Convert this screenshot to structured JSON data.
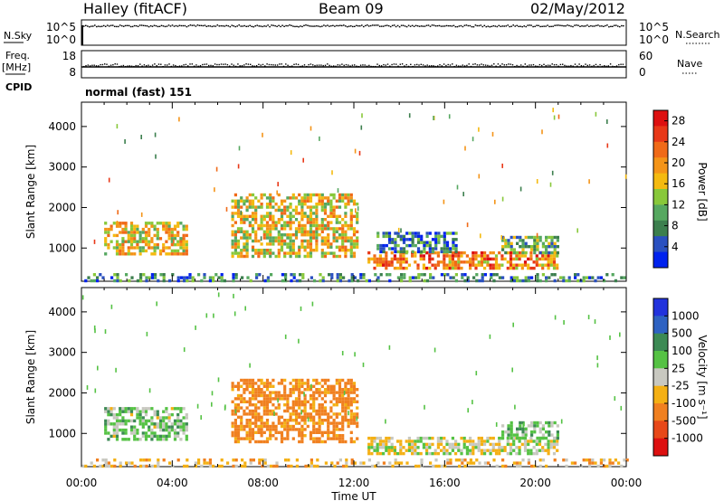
{
  "header": {
    "station": "Halley (fitACF)",
    "beam": "Beam 09",
    "date": "02/May/2012"
  },
  "left_labels": {
    "nsky": "N.Sky",
    "freq": "Freq.",
    "freq_unit": "[MHz]",
    "cpid": "CPID"
  },
  "right_labels": {
    "nsearch": "N.Search",
    "nave": "Nave"
  },
  "cpid_text": "normal (fast) 151",
  "colors": {
    "noise_trace": "#000000",
    "frame": "#000000"
  },
  "chart_data": [
    {
      "type": "line",
      "panel": "noise",
      "left_ticks": [
        "10^5",
        "10^0"
      ],
      "right_ticks": [
        "10^5",
        "10^0"
      ],
      "series": [
        {
          "name": "N.Sky",
          "description_level": "near 10^5, flat all day"
        },
        {
          "name": "N.Search",
          "description_level": "near 10^5, flat all day"
        }
      ]
    },
    {
      "type": "scatter",
      "panel": "frequency",
      "left_ticks": [
        "18",
        "8"
      ],
      "right_ticks": [
        "60",
        "0"
      ],
      "ylim_left": [
        8,
        18
      ],
      "ylim_right": [
        0,
        60
      ],
      "series": [
        {
          "name": "Freq.",
          "level": 12.0
        },
        {
          "name": "Nave",
          "level": 29
        }
      ]
    },
    {
      "type": "heatmap",
      "panel": "power",
      "ylabel": "Slant Range [km]",
      "xlabel": "",
      "yticks": [
        1000,
        2000,
        3000,
        4000
      ],
      "ylim": [
        180,
        4600
      ],
      "xlim_hours": [
        0,
        24
      ],
      "colorbar": {
        "label": "Power [dB]",
        "ticks": [
          "4",
          "8",
          "12",
          "16",
          "20",
          "24",
          "28"
        ],
        "range": [
          0,
          30
        ],
        "colors": [
          "#0022ee",
          "#2a50c0",
          "#3c7f4e",
          "#56a860",
          "#88c83a",
          "#f4ba10",
          "#f49418",
          "#f06a18",
          "#e83818",
          "#dd1010"
        ]
      },
      "regions": [
        {
          "t0": 1.0,
          "t1": 4.6,
          "r0": 880,
          "r1": 1650,
          "value": 17
        },
        {
          "t0": 6.6,
          "t1": 12.1,
          "r0": 820,
          "r1": 2350,
          "value": 16
        },
        {
          "t0": 12.6,
          "t1": 20.9,
          "r0": 530,
          "r1": 920,
          "value": 21
        },
        {
          "t0": 13.0,
          "t1": 16.5,
          "r0": 920,
          "r1": 1400,
          "value": 6
        },
        {
          "t0": 18.5,
          "t1": 21.0,
          "r0": 900,
          "r1": 1300,
          "value": 10
        },
        {
          "t0": 0.0,
          "t1": 24.0,
          "r0": 180,
          "r1": 380,
          "value": 8
        }
      ]
    },
    {
      "type": "heatmap",
      "panel": "velocity",
      "ylabel": "Slant Range [km]",
      "xlabel": "Time UT",
      "xticks": [
        "00:00",
        "04:00",
        "08:00",
        "12:00",
        "16:00",
        "20:00",
        "00:00"
      ],
      "yticks": [
        1000,
        2000,
        3000,
        4000
      ],
      "ylim": [
        180,
        4600
      ],
      "xlim_hours": [
        0,
        24
      ],
      "colorbar": {
        "label": "Velocity [m s⁻¹]",
        "ticks": [
          "1000",
          "500",
          "100",
          "25",
          "-25",
          "-100",
          "-500",
          "-1000"
        ],
        "colors": [
          "#2233dd",
          "#2e62c2",
          "#3c8a54",
          "#55c244",
          "#c8c8c0",
          "#f4b014",
          "#f08020",
          "#e84818",
          "#dd1010"
        ]
      },
      "regions": [
        {
          "t0": 1.0,
          "t1": 4.6,
          "r0": 880,
          "r1": 1650,
          "value": 50
        },
        {
          "t0": 6.6,
          "t1": 12.1,
          "r0": 820,
          "r1": 2350,
          "value": -150
        },
        {
          "t0": 12.6,
          "t1": 20.9,
          "r0": 530,
          "r1": 920,
          "value": 0
        },
        {
          "t0": 18.5,
          "t1": 21.0,
          "r0": 900,
          "r1": 1300,
          "value": 60
        },
        {
          "t0": 0.0,
          "t1": 24.0,
          "r0": 180,
          "r1": 380,
          "value": -60
        }
      ]
    }
  ]
}
